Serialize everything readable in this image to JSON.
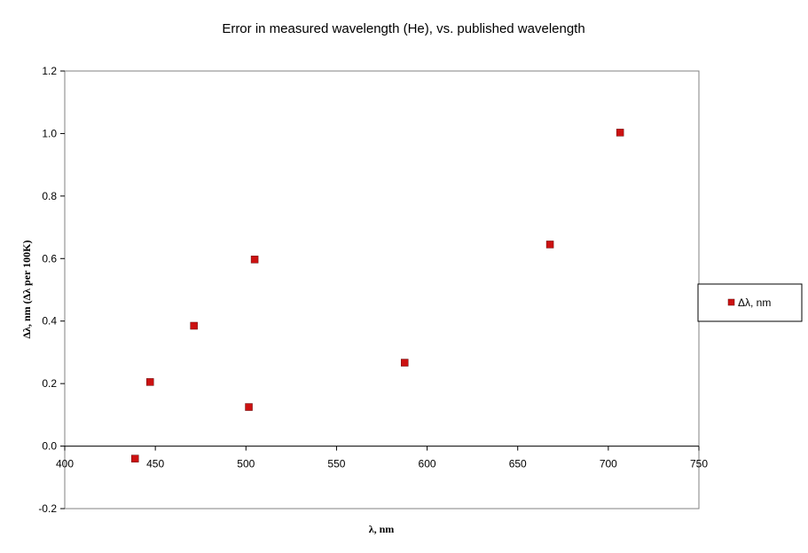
{
  "chart_data": {
    "type": "scatter",
    "title": "Error in measured wavelength (He), vs.  published wavelength",
    "xlabel": "λ, nm",
    "ylabel": "Δλ, nm  (Δλ per 100K)",
    "xlim": [
      400,
      750
    ],
    "ylim": [
      -0.2,
      1.2
    ],
    "x_ticks": [
      "400",
      "450",
      "500",
      "550",
      "600",
      "650",
      "700",
      "750"
    ],
    "y_ticks": [
      "-0.2",
      "0.0",
      "0.2",
      "0.4",
      "0.6",
      "0.8",
      "1.0",
      "1.2"
    ],
    "grid": false,
    "legend_position": "right",
    "marker_color": "#cc1111",
    "series": [
      {
        "name": "Δλ, nm",
        "x": [
          438.8,
          447.1,
          471.3,
          501.6,
          504.8,
          587.6,
          667.8,
          706.5
        ],
        "y": [
          -0.04,
          0.205,
          0.385,
          0.125,
          0.597,
          0.267,
          0.645,
          1.003
        ]
      }
    ]
  }
}
